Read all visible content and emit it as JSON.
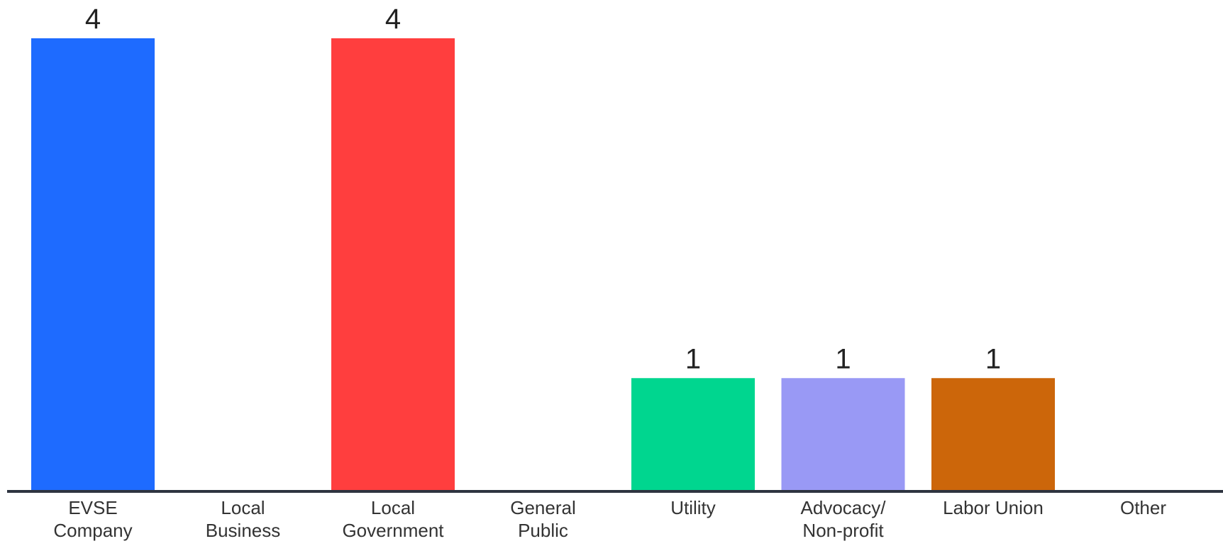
{
  "chart_data": {
    "type": "bar",
    "categories": [
      [
        "EVSE",
        "Company"
      ],
      [
        "Local",
        "Business"
      ],
      [
        "Local",
        "Government"
      ],
      [
        "General",
        "Public"
      ],
      [
        "Utility"
      ],
      [
        "Advocacy/",
        "Non-profit"
      ],
      [
        "Labor Union"
      ],
      [
        "Other"
      ]
    ],
    "values": [
      4,
      0,
      4,
      0,
      1,
      1,
      1,
      0
    ],
    "value_labels": [
      "4",
      "",
      "4",
      "",
      "1",
      "1",
      "1",
      ""
    ],
    "colors": [
      "#1E6BFF",
      "#1E6BFF",
      "#FF3E3E",
      "#FF3E3E",
      "#00D68F",
      "#9999F5",
      "#CC660A",
      "#CC660A"
    ],
    "ylim": [
      0,
      4
    ],
    "grid": false,
    "legend": "none",
    "axis_color": "#2E3440"
  }
}
